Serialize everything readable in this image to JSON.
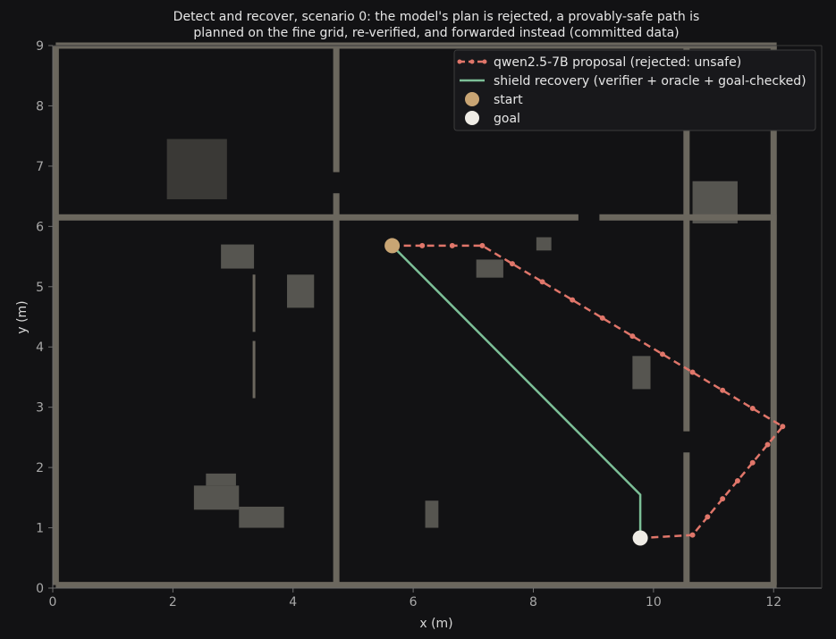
{
  "chart_data": {
    "type": "line",
    "title_lines": [
      "Detect and recover, scenario 0: the model's plan is rejected, a provably-safe path is",
      "planned on the fine grid, re-verified, and forwarded instead (committed data)"
    ],
    "xlabel": "x (m)",
    "ylabel": "y (m)",
    "xlim": [
      0,
      12.8
    ],
    "ylim": [
      0,
      9
    ],
    "xticks": [
      0,
      2,
      4,
      6,
      8,
      10,
      12
    ],
    "yticks": [
      0,
      1,
      2,
      3,
      4,
      5,
      6,
      7,
      8,
      9
    ],
    "grid": false,
    "legend_position": "upper right",
    "colors": {
      "background": "#121214",
      "wall": "#6b675e",
      "obstacle": "#565550",
      "proposal": "#e0766a",
      "shield": "#7cbf97",
      "start": "#c9a574",
      "goal": "#efece6",
      "axis": "#6e6e6e"
    },
    "walls": [
      {
        "x": [
          0.05,
          12.05
        ],
        "y": [
          9.0,
          9.0
        ]
      },
      {
        "x": [
          0.05,
          12.05
        ],
        "y": [
          0.05,
          0.05
        ]
      },
      {
        "x": [
          0.05,
          0.05
        ],
        "y": [
          0.05,
          9.0
        ]
      },
      {
        "x": [
          12.0,
          12.0
        ],
        "y": [
          0.05,
          9.0
        ]
      },
      {
        "x": [
          0.05,
          4.72
        ],
        "y": [
          6.15,
          6.15
        ]
      },
      {
        "x": [
          4.72,
          8.75
        ],
        "y": [
          6.15,
          6.15
        ]
      },
      {
        "x": [
          9.1,
          12.05
        ],
        "y": [
          6.15,
          6.15
        ]
      },
      {
        "x": [
          4.72,
          4.72
        ],
        "y": [
          9.0,
          6.9
        ]
      },
      {
        "x": [
          4.72,
          4.72
        ],
        "y": [
          6.55,
          0.05
        ]
      },
      {
        "x": [
          10.55,
          10.55
        ],
        "y": [
          9.0,
          2.6
        ]
      },
      {
        "x": [
          10.55,
          10.55
        ],
        "y": [
          2.25,
          0.05
        ]
      }
    ],
    "thin_walls": [
      {
        "x": [
          3.35,
          3.35
        ],
        "y": [
          5.2,
          4.25
        ]
      },
      {
        "x": [
          3.35,
          3.35
        ],
        "y": [
          4.1,
          3.15
        ]
      }
    ],
    "obstacles": [
      {
        "x0": 1.9,
        "y0": 6.45,
        "x1": 2.9,
        "y1": 7.45,
        "shade": "dark"
      },
      {
        "x0": 2.8,
        "y0": 5.3,
        "x1": 3.35,
        "y1": 5.7,
        "shade": "mid"
      },
      {
        "x0": 3.9,
        "y0": 4.65,
        "x1": 4.35,
        "y1": 5.2,
        "shade": "mid"
      },
      {
        "x0": 7.05,
        "y0": 5.15,
        "x1": 7.5,
        "y1": 5.45,
        "shade": "mid"
      },
      {
        "x0": 8.05,
        "y0": 5.6,
        "x1": 8.3,
        "y1": 5.82,
        "shade": "mid"
      },
      {
        "x0": 9.65,
        "y0": 3.3,
        "x1": 9.95,
        "y1": 3.85,
        "shade": "mid"
      },
      {
        "x0": 10.65,
        "y0": 6.05,
        "x1": 11.4,
        "y1": 6.75,
        "shade": "mid"
      },
      {
        "x0": 2.55,
        "y0": 1.7,
        "x1": 3.05,
        "y1": 1.9,
        "shade": "mid"
      },
      {
        "x0": 2.35,
        "y0": 1.3,
        "x1": 3.1,
        "y1": 1.7,
        "shade": "mid"
      },
      {
        "x0": 3.1,
        "y0": 1.0,
        "x1": 3.85,
        "y1": 1.35,
        "shade": "mid"
      },
      {
        "x0": 6.2,
        "y0": 1.0,
        "x1": 6.42,
        "y1": 1.45,
        "shade": "mid"
      }
    ],
    "series": [
      {
        "name": "qwen2.5-7B proposal (rejected: unsafe)",
        "style": "dashed-markers",
        "x": [
          5.65,
          6.15,
          6.65,
          7.15,
          7.65,
          8.15,
          8.65,
          9.15,
          9.65,
          10.15,
          10.65,
          11.15,
          11.65,
          12.15,
          11.9,
          11.65,
          11.4,
          11.15,
          10.9,
          10.65,
          9.8
        ],
        "y": [
          5.68,
          5.68,
          5.68,
          5.68,
          5.38,
          5.08,
          4.78,
          4.48,
          4.18,
          3.88,
          3.58,
          3.28,
          2.98,
          2.68,
          2.38,
          2.08,
          1.78,
          1.48,
          1.18,
          0.88,
          0.83
        ]
      },
      {
        "name": "shield recovery (verifier + oracle + goal-checked)",
        "style": "solid",
        "x": [
          5.65,
          9.78,
          9.78
        ],
        "y": [
          5.68,
          1.55,
          0.83
        ]
      }
    ],
    "start": {
      "name": "start",
      "x": 5.65,
      "y": 5.68
    },
    "goal": {
      "name": "goal",
      "x": 9.78,
      "y": 0.83
    }
  }
}
